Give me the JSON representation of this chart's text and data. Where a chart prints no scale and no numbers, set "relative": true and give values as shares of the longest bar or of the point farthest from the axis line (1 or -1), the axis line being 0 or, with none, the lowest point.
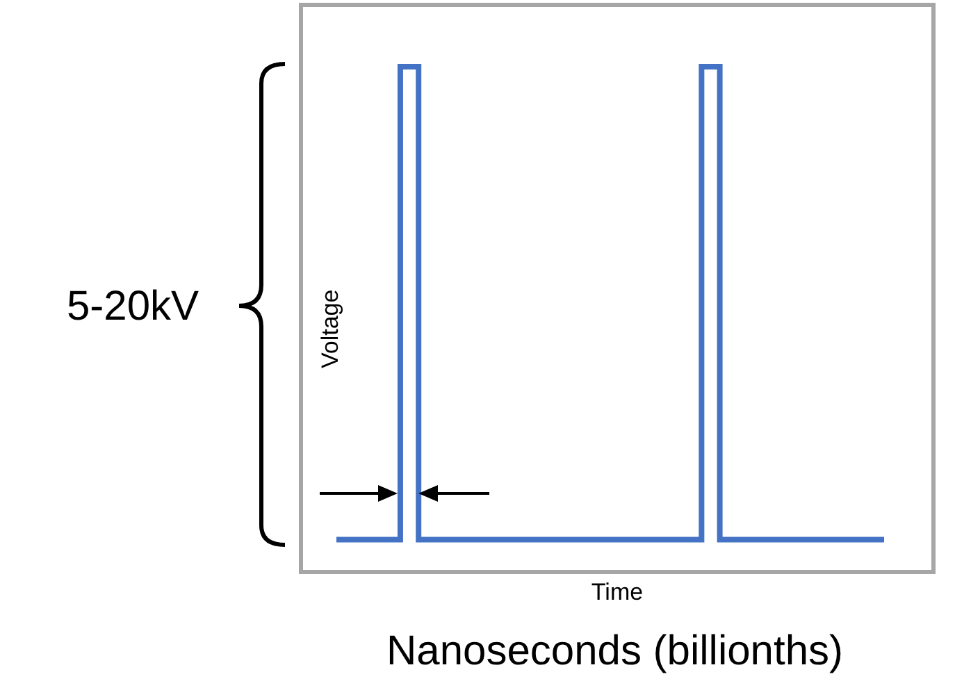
{
  "chart_data": {
    "type": "step",
    "relative": true,
    "xlabel": "Time",
    "ylabel": "Voltage",
    "categories": [
      null,
      null,
      null,
      null,
      null,
      null,
      null,
      null,
      null,
      null,
      null,
      null,
      null,
      null,
      null,
      null,
      null,
      null,
      null,
      null,
      null,
      null,
      null,
      null,
      null,
      null,
      null,
      null,
      null,
      null,
      null,
      null,
      null,
      null,
      null,
      null,
      null,
      null,
      null,
      null,
      null,
      null,
      null,
      null,
      null,
      null,
      null,
      null,
      null,
      null,
      null,
      null,
      null,
      null,
      null,
      null,
      null,
      null,
      null,
      null,
      null
    ],
    "series": [
      {
        "color": "#4472c4",
        "values": [
          0.06,
          0.06,
          0.06,
          0.06,
          0.06,
          0.06,
          0.06,
          1,
          1,
          0.06,
          0.06,
          0.06,
          0.06,
          0.06,
          0.06,
          0.06,
          0.06,
          0.06,
          0.06,
          0.06,
          0.06,
          0.06,
          0.06,
          0.06,
          0.06,
          0.06,
          0.06,
          0.06,
          0.06,
          0.06,
          0.06,
          0.06,
          0.06,
          0.06,
          0.06,
          0.06,
          0.06,
          0.06,
          0.06,
          0.06,
          1,
          1,
          0.06,
          0.06,
          0.06,
          0.06,
          0.06,
          0.06,
          0.06,
          0.06,
          0.06,
          0.06,
          0.06,
          0.06,
          0.06,
          0.06,
          0.06,
          0.06,
          0.06,
          0.06,
          0.06
        ]
      }
    ],
    "annotations": [
      "5-20kV",
      "Nanoseconds (billionths)"
    ],
    "tick_labels": false
  }
}
